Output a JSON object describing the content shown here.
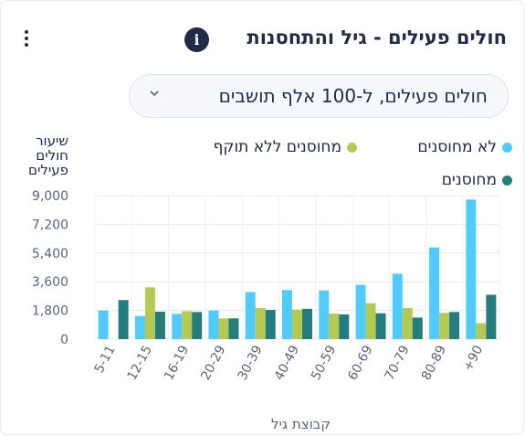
{
  "widget": {
    "title": "חולים פעילים - גיל והתחסנות",
    "info_icon": "i",
    "menu_icon": "more-vertical-icon"
  },
  "dropdown": {
    "selected": "חולים פעילים, ל-100 אלף תושבים",
    "icon": "chevron-down-icon"
  },
  "colors": {
    "unvaccinated": "#50cbfd",
    "expired": "#b6ca51",
    "vaccinated": "#237d7d"
  },
  "chart_data": {
    "type": "bar",
    "ylabel": "שיעור חולים פעילים",
    "xlabel": "קבוצת גיל",
    "categories": [
      "5-11",
      "12-15",
      "16-19",
      "20-29",
      "30-39",
      "40-49",
      "50-59",
      "60-69",
      "70-79",
      "80-89",
      "+90"
    ],
    "ylim": [
      0,
      9000
    ],
    "yticks": [
      "9,000",
      "7,200",
      "5,400",
      "3,600",
      "1,800",
      "0"
    ],
    "grid": true,
    "legend_position": "top",
    "series": [
      {
        "name": "לא מחוסנים",
        "values": [
          1800,
          1450,
          1580,
          1800,
          2950,
          3080,
          3050,
          3400,
          4100,
          5750,
          8750
        ]
      },
      {
        "name": "מחוסנים ללא תוקף",
        "values": [
          null,
          3250,
          1750,
          1300,
          1950,
          1850,
          1600,
          2250,
          1950,
          1650,
          1000
        ]
      },
      {
        "name": "מחוסנים",
        "values": [
          2450,
          1720,
          1700,
          1300,
          1830,
          1900,
          1550,
          1620,
          1350,
          1700,
          2780
        ]
      }
    ]
  }
}
